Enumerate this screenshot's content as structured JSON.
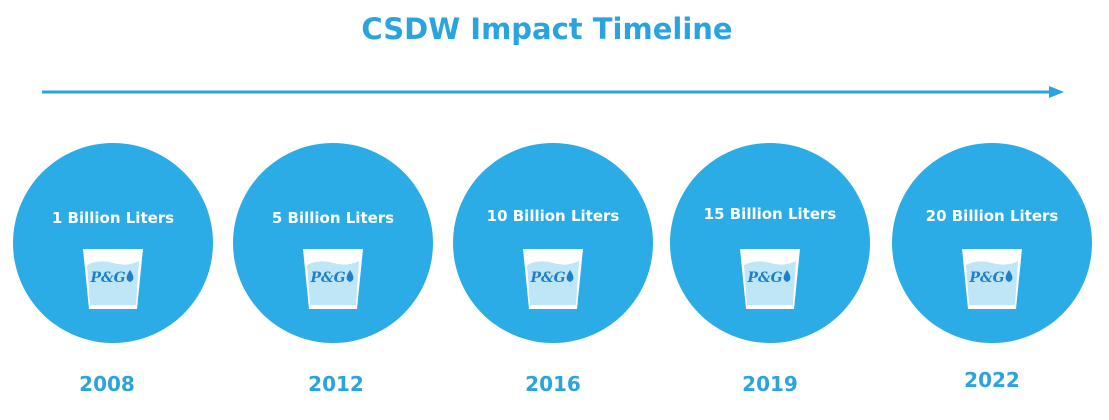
{
  "title": "CSDW Impact Timeline",
  "colors": {
    "accent": "#2aa3df",
    "circle": "#2bace6",
    "water": "#bfe6f6"
  },
  "cup_logo": "P&G",
  "milestones": [
    {
      "label": "1 Billion Liters",
      "year": "2008",
      "icon": "pg-cup-icon"
    },
    {
      "label": "5 Billion Liters",
      "year": "2012",
      "icon": "pg-cup-icon"
    },
    {
      "label": "10 Billion Liters",
      "year": "2016",
      "icon": "pg-cup-icon"
    },
    {
      "label": "15 Billion Liters",
      "year": "2019",
      "icon": "pg-cup-icon"
    },
    {
      "label": "20 Billion Liters",
      "year": "2022",
      "icon": "pg-cup-icon"
    }
  ]
}
